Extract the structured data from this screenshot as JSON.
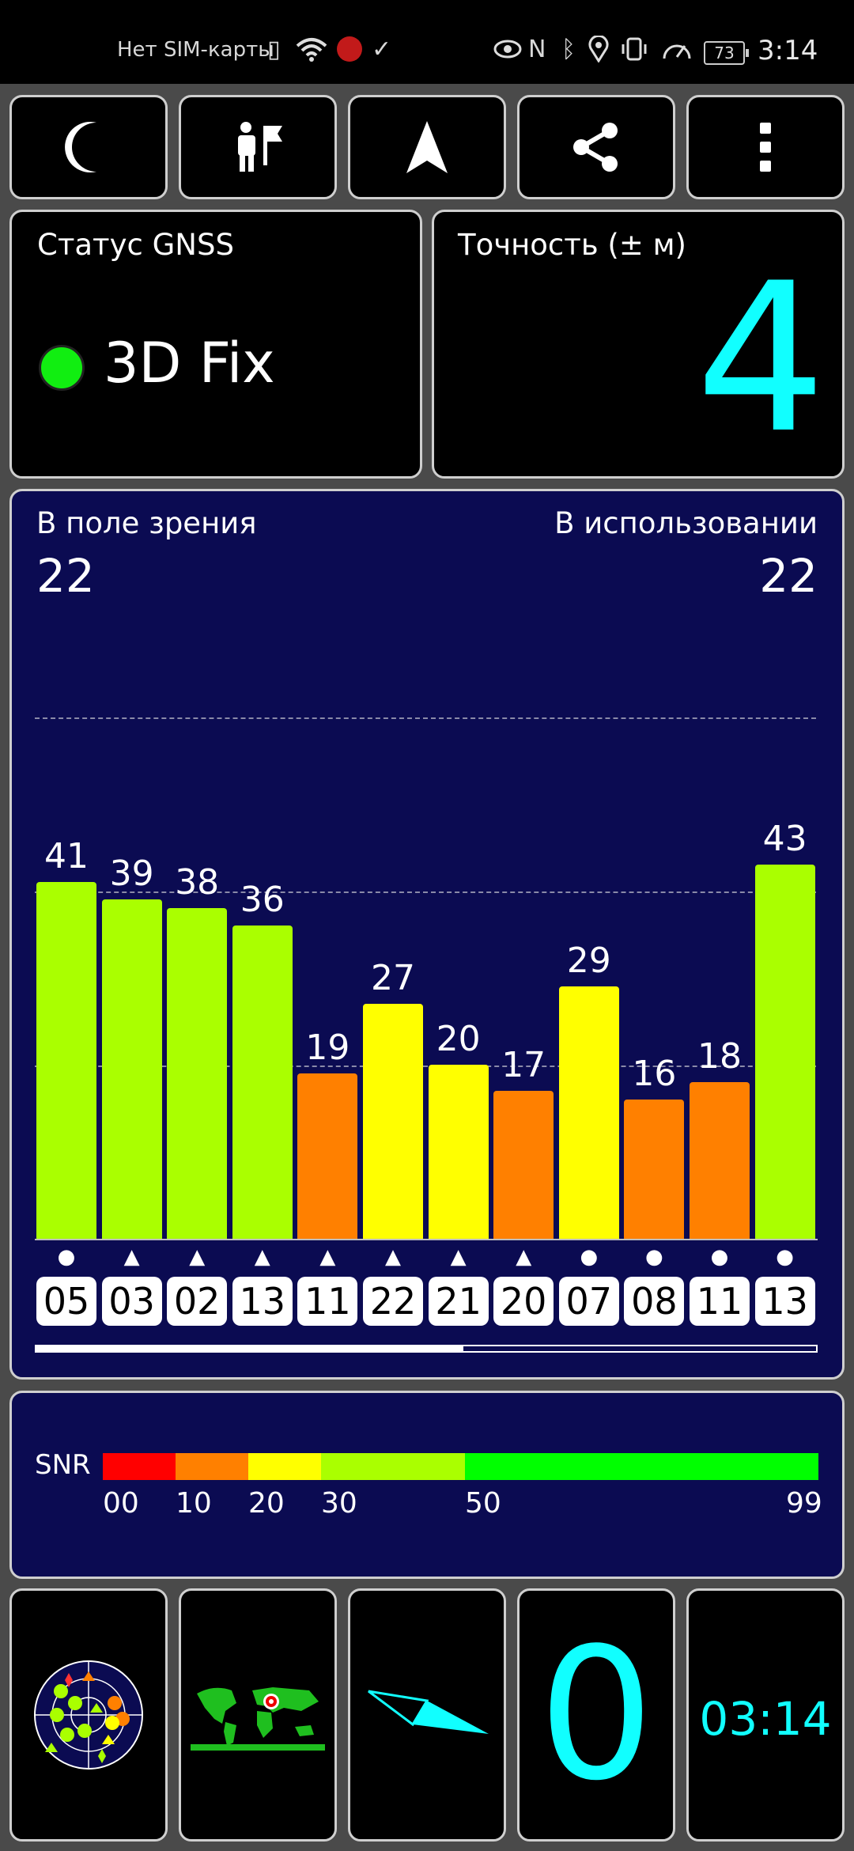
{
  "statusbar": {
    "carrier": "Нет SIM-карты",
    "battery": "73",
    "time": "3:14"
  },
  "toolbar": {
    "buttons": [
      {
        "icon": "moon-icon"
      },
      {
        "icon": "person-flag-icon"
      },
      {
        "icon": "navigation-arrow-icon"
      },
      {
        "icon": "share-icon"
      },
      {
        "icon": "more-vertical-icon"
      }
    ]
  },
  "gnss": {
    "title": "Статус GNSS",
    "status": "3D Fix",
    "status_color": "#11ee11"
  },
  "accuracy": {
    "title": "Точность (± м)",
    "value": "4",
    "color": "#11ffff"
  },
  "sats": {
    "in_view_label": "В поле зрения",
    "in_view": "22",
    "in_use_label": "В использовании",
    "in_use": "22"
  },
  "chart_data": {
    "type": "bar",
    "categories": [
      "05",
      "03",
      "02",
      "13",
      "11",
      "22",
      "21",
      "20",
      "07",
      "08",
      "11",
      "13"
    ],
    "values": [
      41,
      39,
      38,
      36,
      19,
      27,
      20,
      17,
      29,
      16,
      18,
      43
    ],
    "markers": [
      "circle",
      "triangle",
      "triangle",
      "triangle",
      "triangle",
      "triangle",
      "triangle",
      "triangle",
      "circle",
      "circle",
      "circle",
      "circle"
    ],
    "ylim": [
      0,
      60
    ],
    "colors": {
      "lt20": "#ff8000",
      "lt30": "#ffff00",
      "lt50": "#aaff00"
    }
  },
  "snr": {
    "label": "SNR",
    "ticks": [
      "00",
      "10",
      "20",
      "30",
      "50",
      "99"
    ],
    "colors": [
      "#ff0000",
      "#ff8000",
      "#ffff00",
      "#aaff00",
      "#00ff00"
    ]
  },
  "bottom": {
    "speed": "0",
    "clock": "03:14"
  }
}
